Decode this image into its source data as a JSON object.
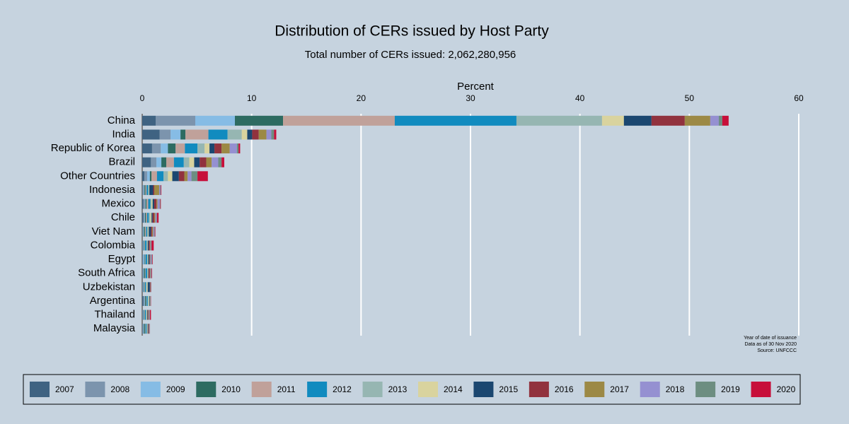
{
  "chart_data": {
    "type": "stacked-barh",
    "title": "Distribution of CERs issued by Host Party",
    "subtitle": "Total number of CERs issued: 2,062,280,956",
    "x_label": "Percent",
    "notes": [
      "Year of date of issuance",
      "Data as of 30 Nov 2020",
      "Source: UNFCCC"
    ],
    "categories": [
      "China",
      "India",
      "Republic of Korea",
      "Brazil",
      "Other Countries",
      "Indonesia",
      "Mexico",
      "Chile",
      "Viet Nam",
      "Colombia",
      "Egypt",
      "South Africa",
      "Uzbekistan",
      "Argentina",
      "Thailand",
      "Malaysia"
    ],
    "xlim": [
      0,
      60
    ],
    "xticks": [
      0,
      10,
      20,
      30,
      40,
      50,
      60
    ],
    "grid": true,
    "legend": "bottom",
    "series": [
      {
        "name": "2007",
        "color": "#3f6382",
        "values": [
          1.23,
          1.6,
          0.9,
          0.8,
          0.2,
          0.05,
          0.1,
          0.1,
          0.05,
          0.05,
          0.05,
          0.05,
          0.05,
          0.1,
          0.05,
          0.05
        ]
      },
      {
        "name": "2008",
        "color": "#7c94ad",
        "values": [
          3.62,
          1.0,
          0.8,
          0.5,
          0.25,
          0.1,
          0.15,
          0.1,
          0.05,
          0.05,
          0.05,
          0.05,
          0.05,
          0.1,
          0.05,
          0.05
        ]
      },
      {
        "name": "2009",
        "color": "#86bce5",
        "values": [
          3.62,
          0.9,
          0.65,
          0.45,
          0.25,
          0.05,
          0.05,
          0.05,
          0.05,
          0.05,
          0.1,
          0.05,
          0.05,
          0.05,
          0.05,
          0.05
        ]
      },
      {
        "name": "2010",
        "color": "#2d6b61",
        "values": [
          4.4,
          0.45,
          0.7,
          0.45,
          0.15,
          0.1,
          0.1,
          0.1,
          0.1,
          0.05,
          0.05,
          0.1,
          0.05,
          0.1,
          0.05,
          0.1
        ]
      },
      {
        "name": "2011",
        "color": "#c0a19a",
        "values": [
          10.21,
          2.1,
          0.85,
          0.7,
          0.5,
          0.1,
          0.15,
          0.1,
          0.1,
          0.05,
          0.05,
          0.05,
          0.05,
          0.05,
          0.05,
          0.05
        ]
      },
      {
        "name": "2012",
        "color": "#118bbf",
        "values": [
          11.12,
          1.75,
          1.15,
          0.9,
          0.6,
          0.15,
          0.2,
          0.15,
          0.1,
          0.15,
          0.15,
          0.15,
          0.1,
          0.1,
          0.1,
          0.1
        ]
      },
      {
        "name": "2013",
        "color": "#96b6b2",
        "values": [
          7.82,
          1.3,
          0.65,
          0.5,
          0.4,
          0.05,
          0.1,
          0.15,
          0.1,
          0.05,
          0.05,
          0.05,
          0.05,
          0.1,
          0.05,
          0.05
        ]
      },
      {
        "name": "2014",
        "color": "#d9d39e",
        "values": [
          2.0,
          0.5,
          0.45,
          0.45,
          0.4,
          0.05,
          0.1,
          0.1,
          0.05,
          0.05,
          0.05,
          0.05,
          0.1,
          0.05,
          0.05,
          0.05
        ]
      },
      {
        "name": "2015",
        "color": "#1b4770",
        "values": [
          2.52,
          0.45,
          0.45,
          0.5,
          0.6,
          0.35,
          0.15,
          0.1,
          0.2,
          0.1,
          0.1,
          0.05,
          0.2,
          0.05,
          0.05,
          0.05
        ]
      },
      {
        "name": "2016",
        "color": "#91323e",
        "values": [
          3.04,
          0.6,
          0.65,
          0.6,
          0.5,
          0.1,
          0.2,
          0.15,
          0.1,
          0.1,
          0.05,
          0.1,
          0.05,
          0.02,
          0.05,
          0.05
        ]
      },
      {
        "name": "2017",
        "color": "#9c8945",
        "values": [
          2.33,
          0.7,
          0.75,
          0.5,
          0.3,
          0.45,
          0.1,
          0.1,
          0.1,
          0.05,
          0.05,
          0.05,
          0.02,
          0.02,
          0.05,
          0.03
        ]
      },
      {
        "name": "2018",
        "color": "#9590d1",
        "values": [
          0.78,
          0.45,
          0.65,
          0.6,
          0.35,
          0.1,
          0.2,
          0.1,
          0.1,
          0.05,
          0.1,
          0.05,
          0.02,
          0.02,
          0.05,
          0.03
        ]
      },
      {
        "name": "2019",
        "color": "#6d8e81",
        "values": [
          0.32,
          0.25,
          0.15,
          0.3,
          0.55,
          0.05,
          0.05,
          0.05,
          0.05,
          0.05,
          0.05,
          0.05,
          0.02,
          0.02,
          0.05,
          0.02
        ]
      },
      {
        "name": "2020",
        "color": "#c70f3a",
        "values": [
          0.58,
          0.2,
          0.15,
          0.25,
          0.95,
          0.05,
          0.05,
          0.15,
          0.05,
          0.2,
          0.05,
          0.05,
          0.02,
          0.02,
          0.1,
          0.02
        ]
      }
    ]
  }
}
